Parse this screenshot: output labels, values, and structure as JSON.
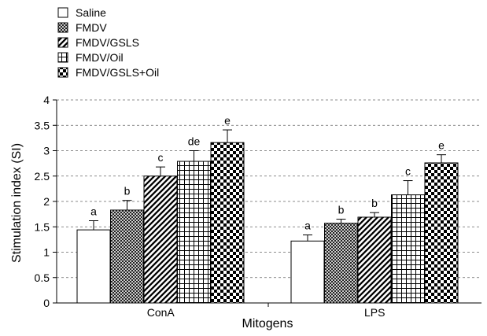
{
  "chart_data": {
    "type": "bar",
    "categories": [
      "ConA",
      "LPS"
    ],
    "series": [
      {
        "name": "Saline",
        "pattern": "white",
        "values": [
          1.44,
          1.22
        ],
        "errors": [
          0.18,
          0.12
        ],
        "labels": [
          "a",
          "a"
        ]
      },
      {
        "name": "FMDV",
        "pattern": "crosshatch",
        "values": [
          1.83,
          1.57
        ],
        "errors": [
          0.19,
          0.08
        ],
        "labels": [
          "b",
          "b"
        ]
      },
      {
        "name": "FMDV/GSLS",
        "pattern": "diagonal",
        "values": [
          2.5,
          1.69
        ],
        "errors": [
          0.18,
          0.09
        ],
        "labels": [
          "c",
          "b"
        ]
      },
      {
        "name": "FMDV/Oil",
        "pattern": "grid",
        "values": [
          2.79,
          2.13
        ],
        "errors": [
          0.21,
          0.28
        ],
        "labels": [
          "de",
          "c"
        ]
      },
      {
        "name": "FMDV/GSLS+Oil",
        "pattern": "checker",
        "values": [
          3.16,
          2.76
        ],
        "errors": [
          0.25,
          0.16
        ],
        "labels": [
          "e",
          "e"
        ]
      }
    ],
    "xlabel": "Mitogens",
    "ylabel": "Stimulation index (SI)",
    "ylim": [
      0,
      4
    ],
    "yticks": [
      "0",
      "0.5",
      "1",
      "1.5",
      "2",
      "2.5",
      "3",
      "3.5",
      "4"
    ],
    "ytick_values": [
      0,
      0.5,
      1,
      1.5,
      2,
      2.5,
      3,
      3.5,
      4
    ],
    "grid": "horizontal-dashed",
    "legend_position": "top-left"
  }
}
